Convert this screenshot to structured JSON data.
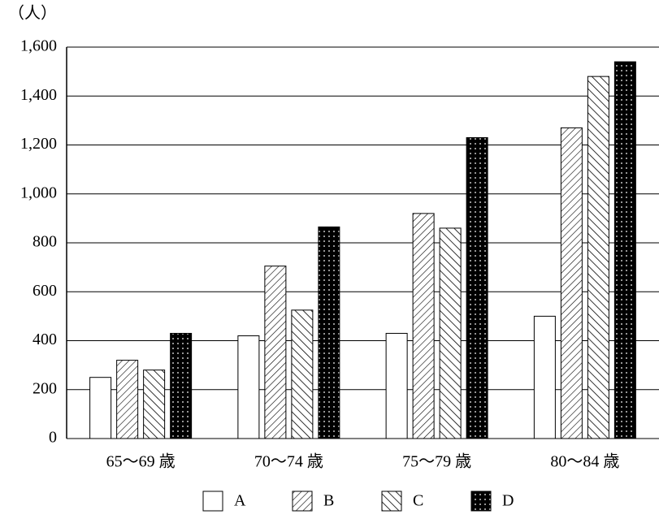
{
  "chart_data": {
    "type": "bar",
    "y_label": "（人）",
    "categories": [
      "65～69 歳",
      "70～74 歳",
      "75～79 歳",
      "80～84 歳"
    ],
    "series": [
      {
        "name": "A",
        "color": "#ffffff",
        "pattern": "none",
        "values": [
          250,
          420,
          430,
          500
        ]
      },
      {
        "name": "B",
        "color": "#ffffff",
        "pattern": "backslash",
        "values": [
          320,
          705,
          920,
          1270
        ]
      },
      {
        "name": "C",
        "color": "#ffffff",
        "pattern": "slash",
        "values": [
          280,
          525,
          860,
          1480
        ]
      },
      {
        "name": "D",
        "color": "#000000",
        "pattern": "dots",
        "values": [
          430,
          865,
          1230,
          1540
        ]
      }
    ],
    "ylim": [
      0,
      1600
    ],
    "yticks": [
      0,
      200,
      400,
      600,
      800,
      {
        "value": 1000,
        "label": "1,000"
      },
      {
        "value": 1200,
        "label": "1,200"
      },
      {
        "value": 1400,
        "label": "1,400"
      },
      {
        "value": 1600,
        "label": "1,600"
      }
    ],
    "grid": true,
    "legend": "bottom"
  }
}
